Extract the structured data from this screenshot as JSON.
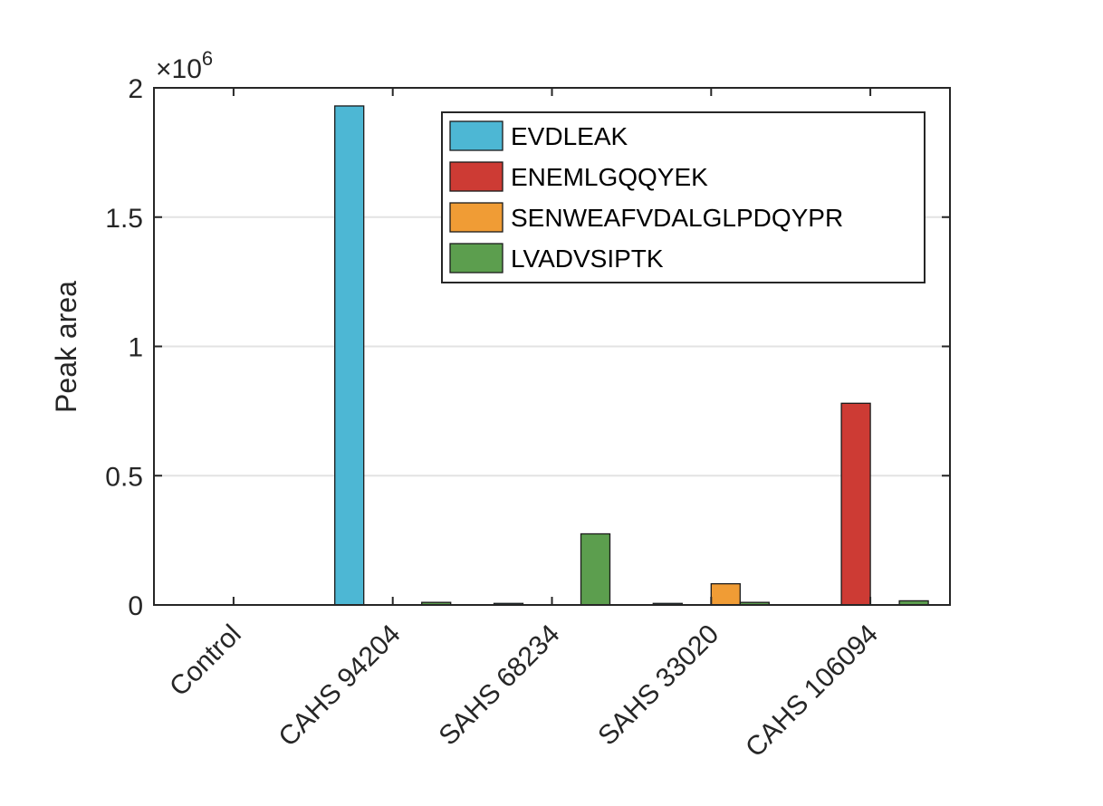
{
  "chart_data": {
    "type": "bar",
    "categories": [
      "Control",
      "CAHS 94204",
      "SAHS 68234",
      "SAHS 33020",
      "CAHS 106094"
    ],
    "series": [
      {
        "name": "EVDLEAK",
        "color": "#4DB7D4",
        "values": [
          0,
          1930000,
          6000,
          6000,
          0
        ]
      },
      {
        "name": "ENEMLGQQYEK",
        "color": "#CD3B34",
        "values": [
          0,
          0,
          0,
          0,
          780000
        ]
      },
      {
        "name": "SENWEAFVDALGLPDQYPR",
        "color": "#F09C35",
        "values": [
          0,
          0,
          0,
          82000,
          0
        ]
      },
      {
        "name": "LVADVSIPTK",
        "color": "#5C9E4E",
        "values": [
          0,
          10000,
          275000,
          10000,
          16000
        ]
      }
    ],
    "ylabel": "Peak area",
    "xlabel": "",
    "ylim": [
      0,
      2000000
    ],
    "yticks": [
      0,
      500000,
      1000000,
      1500000,
      2000000
    ],
    "ytick_labels": [
      "0",
      "0.5",
      "1",
      "1.5",
      "2"
    ],
    "exponent_label": {
      "prefix": "×10",
      "power": "6"
    },
    "grid": "y-major",
    "legend": "top-right"
  }
}
